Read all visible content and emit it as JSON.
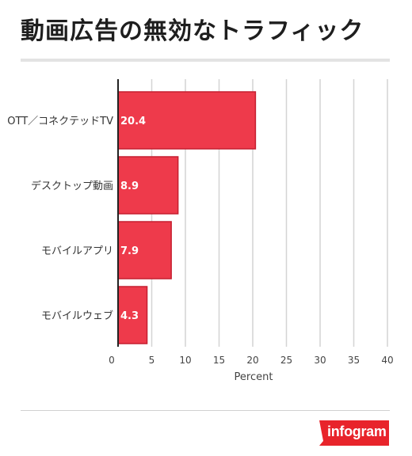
{
  "title": "動画広告の無効なトラフィック",
  "brand": {
    "name": "infogram",
    "color": "#e8242b"
  },
  "chart_data": {
    "type": "bar",
    "orientation": "horizontal",
    "categories": [
      "OTT／コネクテッドTV",
      "デスクトップ動画",
      "モバイルアプリ",
      "モバイルウェブ"
    ],
    "values": [
      20.4,
      8.9,
      7.9,
      4.3
    ],
    "data_labels": [
      "20.4",
      "8.9",
      "7.9",
      "4.3"
    ],
    "xlabel": "Percent",
    "ylabel": "",
    "xlim": [
      0,
      40
    ],
    "xticks": [
      0,
      5,
      10,
      15,
      20,
      25,
      30,
      35,
      40
    ],
    "xtick_labels": [
      "0",
      "5",
      "10",
      "15",
      "20",
      "25",
      "30",
      "35",
      "40"
    ],
    "grid": "vertical",
    "legend": "none",
    "bar_color": "#ee3a4b",
    "bar_edge_color": "#c61f30",
    "label_color": "#ffffff"
  }
}
